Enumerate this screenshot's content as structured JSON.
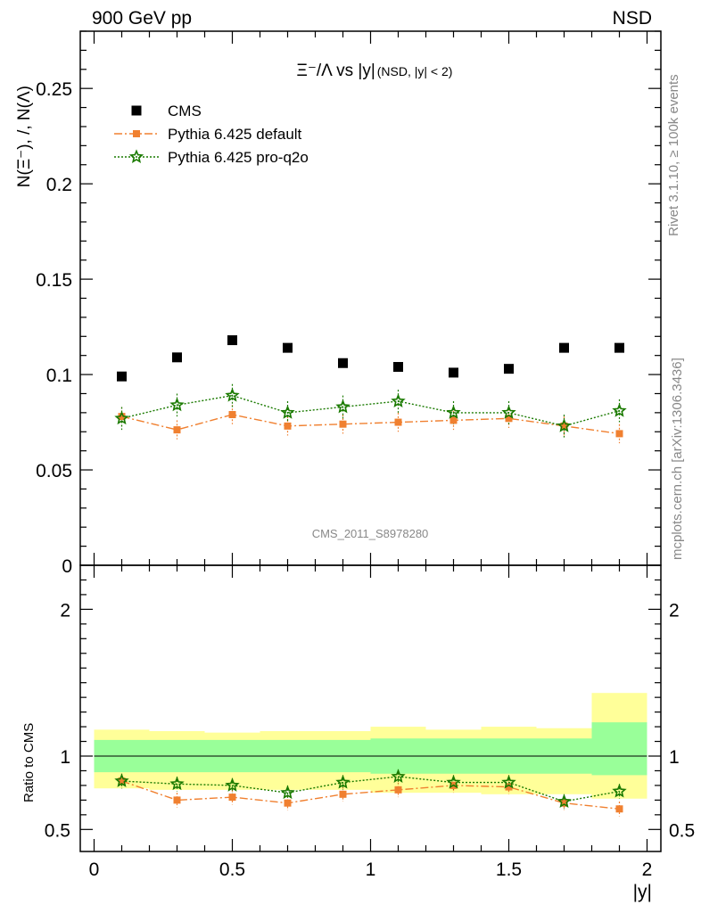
{
  "header": {
    "left": "900 GeV pp",
    "right": "NSD"
  },
  "side_text": {
    "rivet": "Rivet 3.1.10, ≥ 100k events",
    "mcplots": "mcplots.cern.ch [arXiv:1306.3436]"
  },
  "colors": {
    "cms": "#000000",
    "pythia_default": "#f08030",
    "pythia_proq2o": "#1a7a00",
    "band_outer": "#ffff99",
    "band_inner": "#99ff99",
    "side_text": "#888888"
  },
  "chart_data": [
    {
      "type": "scatter",
      "title": "Ξ⁻/Λ vs |y|",
      "subtitle": "(NSD, |y| < 2)",
      "ylabel": "N(Ξ⁻), /, N(Λ)",
      "watermark": "CMS_2011_S8978280",
      "xlim": [
        -0.05,
        2.05
      ],
      "ylim": [
        0,
        0.28
      ],
      "yticks": [
        0,
        0.05,
        0.1,
        0.15,
        0.2,
        0.25
      ],
      "ytick_labels": [
        "0",
        "0.05",
        "0.1",
        "0.15",
        "0.2",
        "0.25"
      ],
      "legend_position": "top-left",
      "x": [
        0.1,
        0.3,
        0.5,
        0.7,
        0.9,
        1.1,
        1.3,
        1.5,
        1.7,
        1.9
      ],
      "series": [
        {
          "name": "CMS",
          "marker": "square",
          "values": [
            0.099,
            0.109,
            0.118,
            0.114,
            0.106,
            0.104,
            0.101,
            0.103,
            0.114,
            0.114
          ]
        },
        {
          "name": "Pythia 6.425 default",
          "marker": "small-square",
          "line": "dash-dot",
          "values": [
            0.078,
            0.071,
            0.079,
            0.073,
            0.074,
            0.075,
            0.076,
            0.077,
            0.073,
            0.069
          ],
          "errors": [
            0.005,
            0.005,
            0.005,
            0.005,
            0.005,
            0.005,
            0.005,
            0.005,
            0.005,
            0.005
          ]
        },
        {
          "name": "Pythia 6.425 pro-q2o",
          "marker": "star",
          "line": "dotted",
          "values": [
            0.077,
            0.084,
            0.089,
            0.08,
            0.083,
            0.086,
            0.08,
            0.08,
            0.073,
            0.081
          ],
          "errors": [
            0.006,
            0.006,
            0.006,
            0.006,
            0.006,
            0.006,
            0.006,
            0.006,
            0.006,
            0.006
          ]
        }
      ]
    },
    {
      "type": "scatter",
      "title": "",
      "xlabel": "|y|",
      "ylabel": "Ratio to CMS",
      "xlim": [
        -0.05,
        2.05
      ],
      "ylim": [
        0.35,
        2.3
      ],
      "xticks": [
        0,
        0.5,
        1,
        1.5,
        2
      ],
      "xtick_labels": [
        "0",
        "0.5",
        "1",
        "1.5",
        "2"
      ],
      "yticks": [
        0.5,
        1,
        2
      ],
      "ytick_labels": [
        "0.5",
        "1",
        "2"
      ],
      "x": [
        0.1,
        0.3,
        0.5,
        0.7,
        0.9,
        1.1,
        1.3,
        1.5,
        1.7,
        1.9
      ],
      "bins": [
        [
          0.0,
          0.2
        ],
        [
          0.2,
          0.4
        ],
        [
          0.4,
          0.6
        ],
        [
          0.6,
          0.8
        ],
        [
          0.8,
          1.0
        ],
        [
          1.0,
          1.2
        ],
        [
          1.2,
          1.4
        ],
        [
          1.4,
          1.6
        ],
        [
          1.6,
          1.8
        ],
        [
          1.8,
          2.0
        ]
      ],
      "band_outer": [
        [
          0.78,
          1.18
        ],
        [
          0.77,
          1.17
        ],
        [
          0.77,
          1.16
        ],
        [
          0.77,
          1.17
        ],
        [
          0.77,
          1.17
        ],
        [
          0.75,
          1.2
        ],
        [
          0.75,
          1.18
        ],
        [
          0.74,
          1.2
        ],
        [
          0.74,
          1.19
        ],
        [
          0.71,
          1.43
        ]
      ],
      "band_inner": [
        [
          0.89,
          1.11
        ],
        [
          0.89,
          1.11
        ],
        [
          0.89,
          1.11
        ],
        [
          0.89,
          1.11
        ],
        [
          0.89,
          1.11
        ],
        [
          0.88,
          1.12
        ],
        [
          0.88,
          1.12
        ],
        [
          0.88,
          1.12
        ],
        [
          0.88,
          1.12
        ],
        [
          0.87,
          1.23
        ]
      ],
      "series": [
        {
          "name": "Pythia 6.425 default",
          "marker": "small-square",
          "line": "dash-dot",
          "values": [
            0.83,
            0.7,
            0.72,
            0.68,
            0.74,
            0.77,
            0.8,
            0.79,
            0.68,
            0.64
          ],
          "errors": [
            0.05,
            0.05,
            0.05,
            0.05,
            0.05,
            0.05,
            0.05,
            0.05,
            0.05,
            0.05
          ]
        },
        {
          "name": "Pythia 6.425 pro-q2o",
          "marker": "star",
          "line": "dotted",
          "values": [
            0.83,
            0.81,
            0.8,
            0.75,
            0.82,
            0.86,
            0.82,
            0.82,
            0.69,
            0.76
          ],
          "errors": [
            0.05,
            0.05,
            0.05,
            0.05,
            0.05,
            0.05,
            0.05,
            0.05,
            0.05,
            0.05
          ]
        }
      ]
    }
  ]
}
